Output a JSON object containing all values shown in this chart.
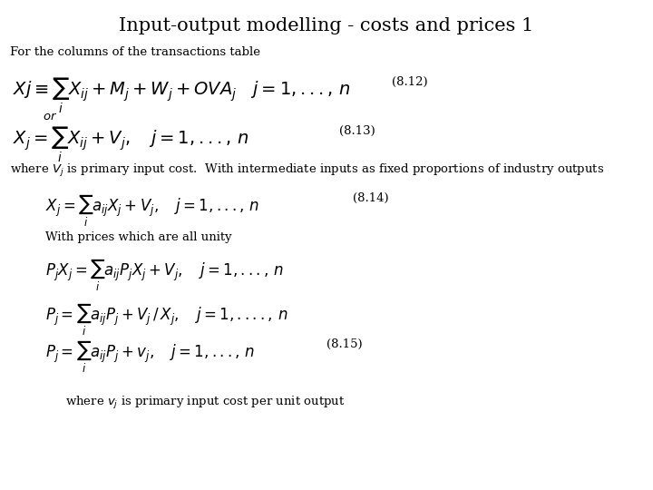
{
  "title": "Input-output modelling - costs and prices 1",
  "subtitle": "For the columns of the transactions table",
  "eq1_label": "(8.12)",
  "eq2_label": "(8.13)",
  "eq3_label": "(8.14)",
  "eq6_label": "(8.15)",
  "text1": "where $V_j$ is primary input cost.  With intermediate inputs as fixed proportions of industry outputs",
  "text2": "With prices which are all unity",
  "text3": "where $v_j$ is primary input cost per unit output",
  "bg_color": "#ffffff",
  "text_color": "#000000",
  "title_fontsize": 15,
  "body_fontsize": 9.5,
  "math_fontsize": 14,
  "math_fontsize_sm": 12
}
